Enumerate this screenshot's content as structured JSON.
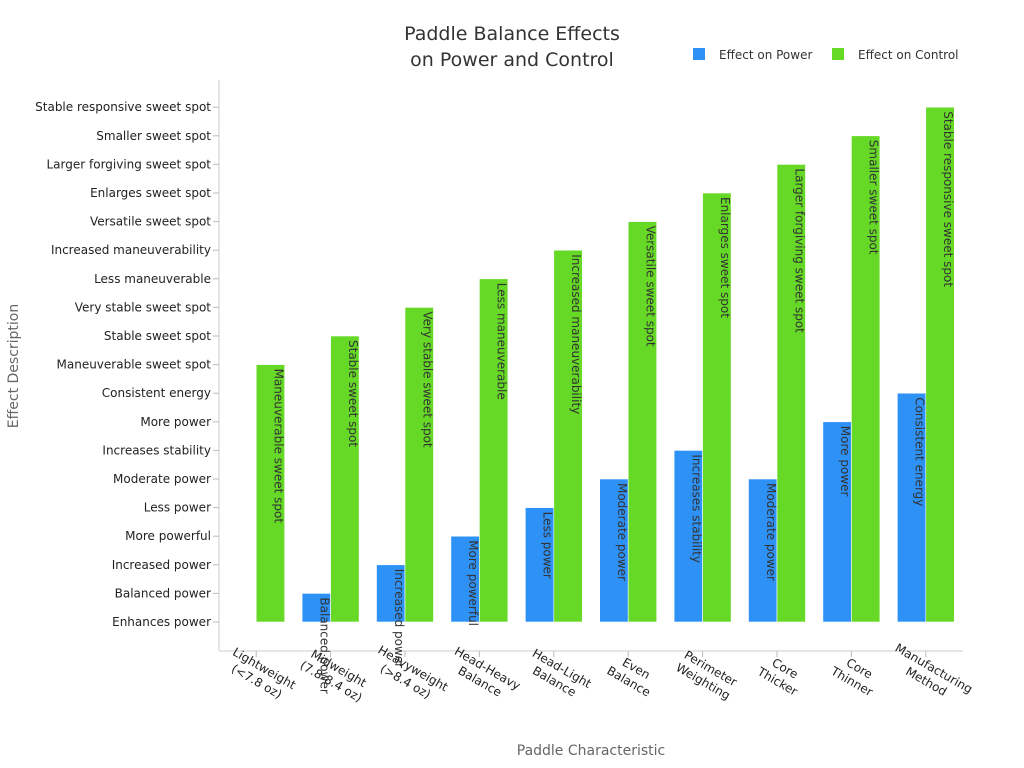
{
  "chart_data": {
    "type": "bar",
    "title_lines": [
      "Paddle Balance Effects",
      "on Power and Control"
    ],
    "xlabel": "Paddle Characteristic",
    "ylabel": "Effect Description",
    "legend_position": "top-right",
    "grid": false,
    "y_categories": [
      "Enhances power",
      "Balanced power",
      "Increased power",
      "More powerful",
      "Less power",
      "Moderate power",
      "Increases stability",
      "More power",
      "Consistent energy",
      "Maneuverable sweet spot",
      "Stable sweet spot",
      "Very stable sweet spot",
      "Less maneuverable",
      "Increased maneuverability",
      "Versatile sweet spot",
      "Enlarges sweet spot",
      "Larger forgiving sweet spot",
      "Smaller sweet spot",
      "Stable responsive sweet spot"
    ],
    "categories": [
      [
        "Lightweight",
        "(<7.8 oz)"
      ],
      [
        "Midweight",
        "(7.8-8.4 oz)"
      ],
      [
        "Heavyweight",
        "(>8.4 oz)"
      ],
      [
        "Head-Heavy",
        "Balance"
      ],
      [
        "Head-Light",
        "Balance"
      ],
      [
        "Even",
        "Balance"
      ],
      [
        "Perimeter",
        "Weighting"
      ],
      [
        "Core",
        "Thicker"
      ],
      [
        "Core",
        "Thinner"
      ],
      [
        "Manufacturing",
        "Method"
      ]
    ],
    "series": [
      {
        "name": "Effect on Power",
        "color": "#2e91f5",
        "values": [
          "Enhances power",
          "Balanced power",
          "Increased power",
          "More powerful",
          "Less power",
          "Moderate power",
          "Increases stability",
          "Moderate power",
          "More power",
          "Consistent energy"
        ]
      },
      {
        "name": "Effect on Control",
        "color": "#66d926",
        "values": [
          "Maneuverable sweet spot",
          "Stable sweet spot",
          "Very stable sweet spot",
          "Less maneuverable",
          "Increased maneuverability",
          "Versatile sweet spot",
          "Enlarges sweet spot",
          "Larger forgiving sweet spot",
          "Smaller sweet spot",
          "Stable responsive sweet spot"
        ]
      }
    ]
  }
}
